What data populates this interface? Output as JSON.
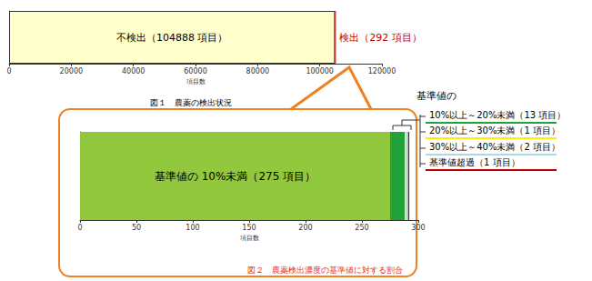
{
  "chart_data": [
    {
      "type": "bar",
      "title": "図１　農薬の検出状況",
      "orientation": "horizontal",
      "stacked": true,
      "categories": [
        null
      ],
      "x_label": "項目数",
      "xlim": [
        0,
        120000
      ],
      "xticks": [
        0,
        20000,
        40000,
        60000,
        80000,
        100000,
        120000
      ],
      "grid": false,
      "tick_labels": "x",
      "data_labels": true,
      "series": [
        {
          "values": [
            104888
          ],
          "value_labels": [
            "不検出（104888 項目）"
          ],
          "color": "#ffffcc"
        },
        {
          "values": [
            292
          ],
          "value_labels": [
            "検出（292 項目）"
          ],
          "color": "#c00000"
        }
      ]
    },
    {
      "type": "bar",
      "title": "図２　農薬検出濃度の基準値に対する割合",
      "orientation": "horizontal",
      "stacked": true,
      "categories": [
        null
      ],
      "x_label": "項目数",
      "annotation_title": "基準値の",
      "xlim": [
        0,
        300
      ],
      "xticks": [
        0,
        50,
        100,
        150,
        200,
        250,
        300
      ],
      "grid": false,
      "tick_labels": "x",
      "data_labels": true,
      "series": [
        {
          "values": [
            275
          ],
          "value_labels": [
            "基準値の 10%未満（275 項目）"
          ],
          "color": "#92c83e"
        },
        {
          "values": [
            13
          ],
          "value_labels": [
            "10%以上～20%未満（13 項目）"
          ],
          "color": "#22a33a"
        },
        {
          "values": [
            1
          ],
          "value_labels": [
            "20%以上～30%未満（1 項目）"
          ],
          "color": "#ffee00"
        },
        {
          "values": [
            2
          ],
          "value_labels": [
            "30%以上～40%未満（2 項目）"
          ],
          "color": "#add8e6"
        },
        {
          "values": [
            1
          ],
          "value_labels": [
            "基準値超過（1 項目）"
          ],
          "color": "#c00000"
        }
      ]
    }
  ]
}
